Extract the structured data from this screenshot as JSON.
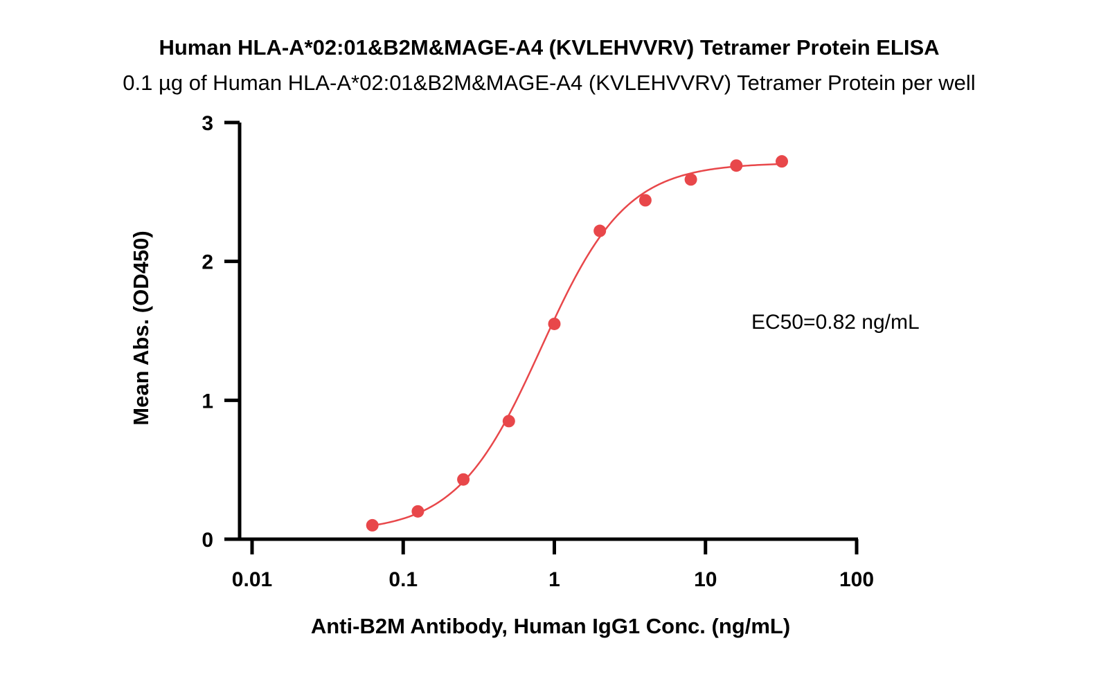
{
  "chart_data": {
    "type": "scatter",
    "title": "Human HLA-A*02:01&B2M&MAGE-A4 (KVLEHVVRV) Tetramer Protein ELISA",
    "subtitle": "0.1 µg of Human HLA-A*02:01&B2M&MAGE-A4 (KVLEHVVRV) Tetramer Protein per well",
    "xlabel": "Anti-B2M Antibody, Human IgG1 Conc. (ng/mL)",
    "ylabel": "Mean Abs. (OD450)",
    "x_scale": "log",
    "xlim": [
      0.01,
      100
    ],
    "ylim": [
      0,
      3
    ],
    "x_ticks": [
      0.01,
      0.1,
      1,
      10,
      100
    ],
    "x_tick_labels": [
      "0.01",
      "0.1",
      "1",
      "10",
      "100"
    ],
    "y_ticks": [
      0,
      1,
      2,
      3
    ],
    "y_tick_labels": [
      "0",
      "1",
      "2",
      "3"
    ],
    "grid": false,
    "annotation": "EC50=0.82 ng/mL",
    "series": [
      {
        "color": "#e8474a",
        "x": [
          0.0625,
          0.125,
          0.25,
          0.5,
          1,
          2,
          4,
          8,
          16,
          32
        ],
        "y": [
          0.1,
          0.2,
          0.43,
          0.85,
          1.55,
          2.22,
          2.44,
          2.59,
          2.69,
          2.72
        ]
      }
    ],
    "fit_curve": {
      "model": "4PL",
      "bottom": 0.05,
      "top": 2.71,
      "ec50": 0.82,
      "hill": 1.55,
      "color": "#e8474a"
    }
  }
}
